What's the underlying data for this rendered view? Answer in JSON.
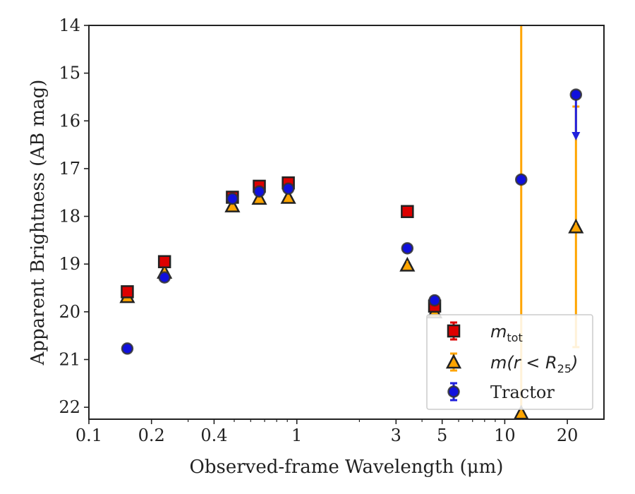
{
  "chart_data": {
    "type": "scatter",
    "xscale": "log",
    "xlim": [
      0.1,
      30
    ],
    "ylim": [
      22.25,
      14.0
    ],
    "y_inverted": true,
    "xlabel": "Observed-frame Wavelength (μm)",
    "ylabel": "Apparent Brightness (AB mag)",
    "x_tick_labels": [
      "0.1",
      "0.2",
      "0.4",
      "1",
      "3",
      "5",
      "10",
      "20"
    ],
    "x_tick_values": [
      0.1,
      0.2,
      0.4,
      1,
      3,
      5,
      10,
      20
    ],
    "y_tick_labels": [
      "14",
      "15",
      "16",
      "17",
      "18",
      "19",
      "20",
      "21",
      "22"
    ],
    "y_tick_values": [
      14,
      15,
      16,
      17,
      18,
      19,
      20,
      21,
      22
    ],
    "legend_position": "lower right",
    "series": [
      {
        "name": "m_tot",
        "legend_main": "m",
        "legend_sub": "tot",
        "marker": "square",
        "color": "#dd0000",
        "errorbar_color": "#dd0000",
        "points": [
          {
            "x": 0.153,
            "y": 19.58
          },
          {
            "x": 0.231,
            "y": 18.95
          },
          {
            "x": 0.49,
            "y": 17.6
          },
          {
            "x": 0.66,
            "y": 17.37
          },
          {
            "x": 0.91,
            "y": 17.3
          },
          {
            "x": 3.4,
            "y": 17.9
          },
          {
            "x": 4.6,
            "y": 19.88
          }
        ]
      },
      {
        "name": "m(r < R25)",
        "legend_main": "m(r < R",
        "legend_sub": "25",
        "legend_close": ")",
        "marker": "triangle",
        "color": "#ffa500",
        "errorbar_color": "#ffa500",
        "points": [
          {
            "x": 0.153,
            "y": 19.68
          },
          {
            "x": 0.231,
            "y": 19.17
          },
          {
            "x": 0.49,
            "y": 17.78
          },
          {
            "x": 0.66,
            "y": 17.62
          },
          {
            "x": 0.91,
            "y": 17.6
          },
          {
            "x": 3.4,
            "y": 19.02
          },
          {
            "x": 4.6,
            "y": 20.0
          },
          {
            "x": 12.0,
            "y": 22.12,
            "err_up": 21.0
          },
          {
            "x": 22.0,
            "y": 18.22,
            "err_up": 2.52,
            "err_down": 2.52
          }
        ]
      },
      {
        "name": "Tractor",
        "legend_main": "Tractor",
        "marker": "circle",
        "color": "#1010dd",
        "errorbar_color": "#2020dd",
        "points": [
          {
            "x": 0.153,
            "y": 20.77
          },
          {
            "x": 0.231,
            "y": 19.28
          },
          {
            "x": 0.49,
            "y": 17.63
          },
          {
            "x": 0.66,
            "y": 17.48
          },
          {
            "x": 0.91,
            "y": 17.42
          },
          {
            "x": 3.4,
            "y": 18.67
          },
          {
            "x": 4.6,
            "y": 19.76
          },
          {
            "x": 12.0,
            "y": 17.23
          },
          {
            "x": 22.0,
            "y": 15.45,
            "upper_limit_arrow_to": 16.35
          }
        ]
      }
    ]
  }
}
